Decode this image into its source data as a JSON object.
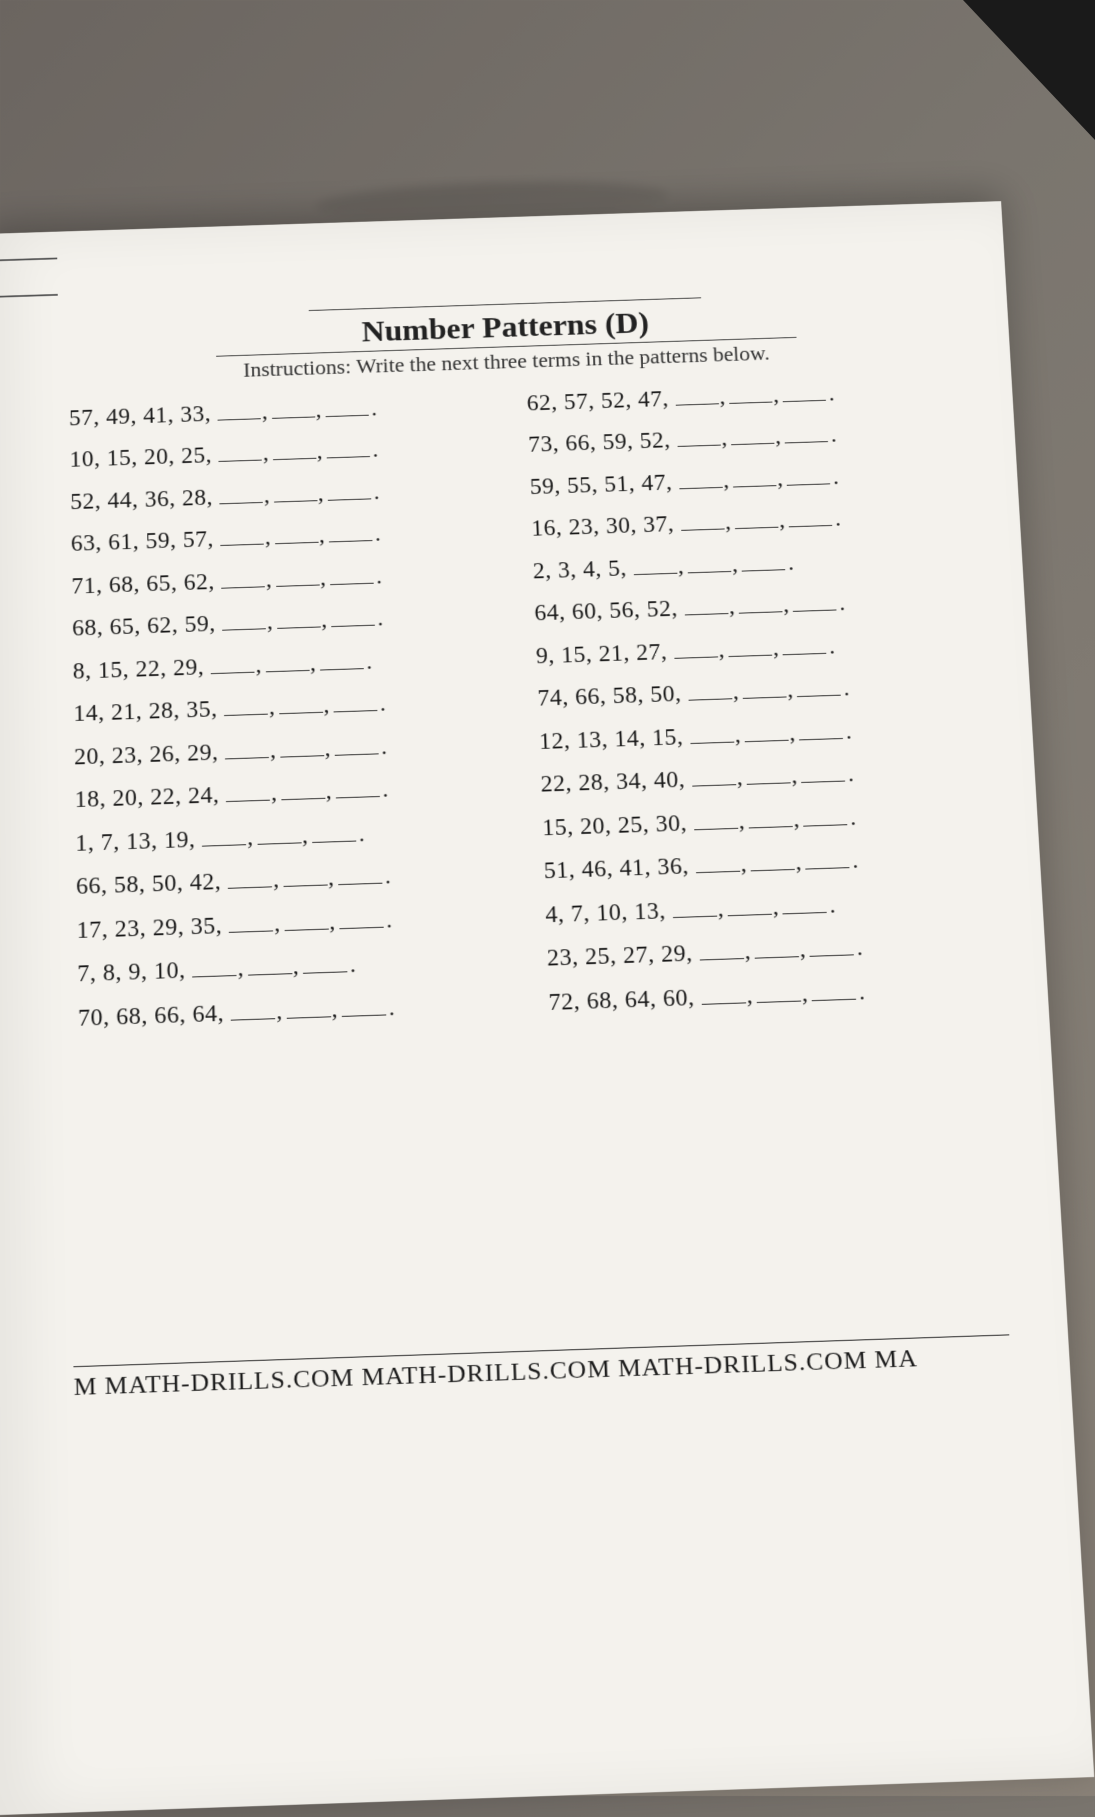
{
  "title": "Number Patterns (D)",
  "instructions": "Instructions: Write the next three terms in the patterns below.",
  "left": [
    "57, 49, 41, 33,",
    "10, 15, 20, 25,",
    "52, 44, 36, 28,",
    "63, 61, 59, 57,",
    "71, 68, 65, 62,",
    "68, 65, 62, 59,",
    "8, 15, 22, 29,",
    "14, 21, 28, 35,",
    "20, 23, 26, 29,",
    "18, 20, 22, 24,",
    "1, 7, 13, 19,",
    "66, 58, 50, 42,",
    "17, 23, 29, 35,",
    "7, 8, 9, 10,",
    "70, 68, 66, 64,"
  ],
  "right": [
    "62, 57, 52, 47,",
    "73, 66, 59, 52,",
    "59, 55, 51, 47,",
    "16, 23, 30, 37,",
    "2, 3, 4, 5,",
    "64, 60, 56, 52,",
    "9, 15, 21, 27,",
    "74, 66, 58, 50,",
    "12, 13, 14, 15,",
    "22, 28, 34, 40,",
    "15, 20, 25, 30,",
    "51, 46, 41, 36,",
    "4, 7, 10, 13,",
    "23, 25, 27, 29,",
    "72, 68, 64, 60,"
  ],
  "footer": "M MATH-DRILLS.COM MATH-DRILLS.COM MATH-DRILLS.COM MA"
}
